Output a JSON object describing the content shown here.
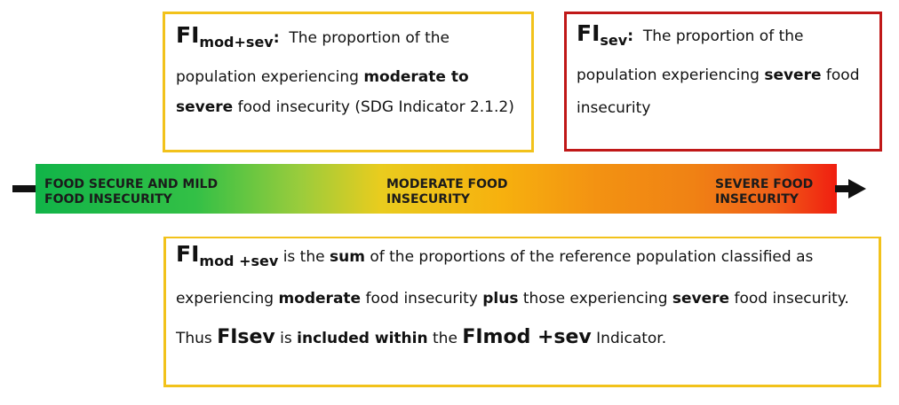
{
  "box_modsev": {
    "fi": "FI",
    "subscript": "mod+sev",
    "colon": ":",
    "line1": "The proportion of the",
    "line2_pre": "population experiencing ",
    "line2_bold": "moderate to",
    "line3_bold": "severe",
    "line3_post": " food insecurity (SDG Indicator 2.1.2)",
    "border_color": "#f2c21b"
  },
  "box_sev": {
    "fi": "FI",
    "subscript": "sev",
    "colon": ":",
    "line1": "The proportion of the",
    "line2_pre": "population experiencing ",
    "line2_bold": "severe",
    "line2_post": " food",
    "line3": "insecurity",
    "border_color": "#c01818"
  },
  "bar": {
    "label_secure": [
      "FOOD SECURE AND MILD",
      "FOOD INSECURITY"
    ],
    "label_moderate": [
      "MODERATE FOOD",
      "INSECURITY"
    ],
    "label_severe": [
      "SEVERE FOOD",
      "INSECURITY"
    ],
    "colors": [
      "#11b448",
      "#e9cc1e",
      "#f08214",
      "#f01e10"
    ]
  },
  "box_sum": {
    "fi": "FI",
    "subscript": "mod +sev",
    "l1_a": " is the ",
    "l1_b": "sum",
    "l1_c": " of the proportions of the reference population classified as",
    "l2_a": "experiencing ",
    "l2_b": "moderate",
    "l2_c": " food insecurity ",
    "l2_d": "plus",
    "l2_e": " those experiencing ",
    "l2_f": "severe",
    "l2_g": " food insecurity.",
    "l3_a": "Thus ",
    "l3_b": "FIsev",
    "l3_c": " is ",
    "l3_d": "included within",
    "l3_e": " the ",
    "l3_f": "FImod +sev",
    "l3_g": " Indicator.",
    "border_color": "#f2c21b"
  }
}
